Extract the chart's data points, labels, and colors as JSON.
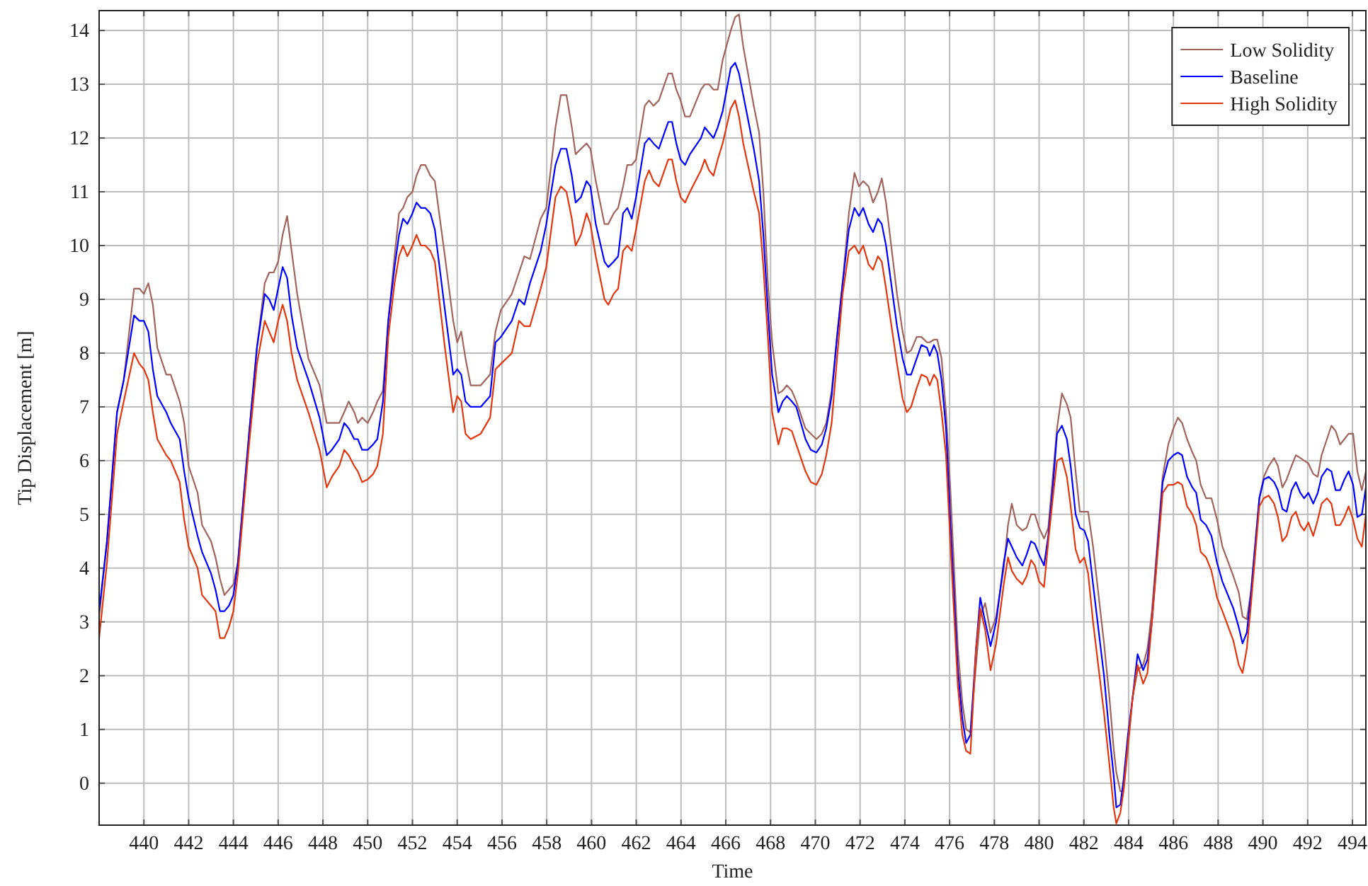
{
  "chart_data": {
    "type": "line",
    "xlabel": "Time",
    "ylabel": "Tip Displacement [m]",
    "xlim": [
      438,
      494.6
    ],
    "ylim": [
      -0.78,
      14.37
    ],
    "xticks": [
      440,
      442,
      444,
      446,
      448,
      450,
      452,
      454,
      456,
      458,
      460,
      462,
      464,
      466,
      468,
      470,
      472,
      474,
      476,
      478,
      480,
      482,
      484,
      486,
      488,
      490,
      492,
      494
    ],
    "yticks": [
      0,
      1,
      2,
      3,
      4,
      5,
      6,
      7,
      8,
      9,
      10,
      11,
      12,
      13,
      14
    ],
    "grid": true,
    "legend": "top right",
    "x": [
      438.0,
      438.35,
      438.8,
      439.1,
      439.56,
      439.8,
      440.0,
      440.2,
      440.4,
      440.6,
      441.0,
      441.2,
      441.6,
      441.8,
      442.0,
      442.4,
      442.6,
      443.0,
      443.2,
      443.4,
      443.6,
      443.8,
      444.0,
      444.2,
      444.7,
      445.05,
      445.4,
      445.6,
      445.8,
      446.0,
      446.2,
      446.4,
      446.6,
      446.85,
      447.35,
      447.85,
      448.17,
      448.4,
      448.73,
      448.95,
      449.15,
      449.4,
      449.56,
      449.75,
      450.0,
      450.24,
      450.43,
      450.68,
      450.92,
      451.2,
      451.4,
      451.58,
      451.77,
      452.0,
      452.18,
      452.38,
      452.57,
      452.8,
      453.0,
      453.45,
      453.82,
      454.0,
      454.18,
      454.37,
      454.6,
      455.05,
      455.47,
      455.71,
      455.95,
      456.44,
      456.76,
      457.0,
      457.25,
      457.73,
      457.98,
      458.2,
      458.39,
      458.63,
      458.88,
      459.12,
      459.29,
      459.53,
      459.78,
      459.95,
      460.19,
      460.58,
      460.75,
      460.99,
      461.19,
      461.41,
      461.6,
      461.8,
      461.99,
      462.38,
      462.57,
      462.77,
      463.01,
      463.26,
      463.43,
      463.6,
      463.79,
      463.98,
      464.18,
      464.4,
      464.89,
      465.06,
      465.25,
      465.45,
      465.64,
      465.86,
      466.22,
      466.42,
      466.59,
      466.78,
      467.25,
      467.49,
      467.68,
      467.88,
      468.07,
      468.35,
      468.54,
      468.73,
      468.95,
      469.15,
      469.56,
      469.8,
      470.05,
      470.29,
      470.49,
      470.73,
      470.97,
      471.22,
      471.5,
      471.75,
      471.95,
      472.14,
      472.38,
      472.58,
      472.8,
      472.97,
      473.16,
      473.65,
      473.9,
      474.09,
      474.28,
      474.53,
      474.74,
      474.99,
      475.11,
      475.3,
      475.45,
      475.64,
      475.84,
      476.03,
      476.37,
      476.57,
      476.74,
      476.93,
      477.18,
      477.37,
      477.59,
      477.83,
      478.08,
      478.42,
      478.61,
      478.78,
      479.0,
      479.25,
      479.44,
      479.64,
      479.81,
      480.0,
      480.22,
      480.41,
      480.61,
      480.8,
      481.02,
      481.24,
      481.41,
      481.63,
      481.82,
      482.02,
      482.19,
      482.41,
      482.9,
      483.14,
      483.33,
      483.45,
      483.63,
      483.77,
      483.97,
      484.18,
      484.4,
      484.65,
      484.84,
      485.04,
      485.52,
      485.77,
      486.0,
      486.2,
      486.39,
      486.61,
      486.85,
      487.02,
      487.22,
      487.46,
      487.7,
      487.95,
      488.19,
      488.68,
      488.92,
      489.09,
      489.28,
      489.46,
      489.84,
      490.04,
      490.26,
      490.5,
      490.67,
      490.87,
      491.06,
      491.28,
      491.47,
      491.67,
      491.84,
      492.03,
      492.25,
      492.45,
      492.62,
      492.86,
      493.06,
      493.25,
      493.45,
      493.64,
      493.83,
      494.03,
      494.22,
      494.42,
      494.6
    ],
    "series": [
      {
        "name": "Low Solidity",
        "color": "#a0645c",
        "values": [
          3.1,
          4.5,
          6.9,
          7.5,
          9.2,
          9.2,
          9.1,
          9.3,
          8.9,
          8.1,
          7.6,
          7.6,
          7.1,
          6.7,
          5.9,
          5.4,
          4.8,
          4.5,
          4.2,
          3.8,
          3.5,
          3.6,
          3.7,
          4.1,
          6.5,
          8.1,
          9.3,
          9.5,
          9.5,
          9.7,
          10.2,
          10.55,
          9.9,
          9.1,
          7.9,
          7.4,
          6.7,
          6.7,
          6.7,
          6.9,
          7.1,
          6.9,
          6.7,
          6.8,
          6.7,
          6.9,
          7.1,
          7.3,
          8.6,
          9.8,
          10.6,
          10.7,
          10.9,
          11.0,
          11.3,
          11.5,
          11.5,
          11.3,
          11.2,
          9.8,
          8.6,
          8.2,
          8.4,
          7.9,
          7.4,
          7.4,
          7.6,
          8.4,
          8.8,
          9.1,
          9.5,
          9.8,
          9.75,
          10.5,
          10.7,
          11.5,
          12.2,
          12.8,
          12.8,
          12.2,
          11.7,
          11.8,
          11.9,
          11.8,
          11.2,
          10.4,
          10.4,
          10.6,
          10.7,
          11.1,
          11.5,
          11.5,
          11.6,
          12.6,
          12.7,
          12.6,
          12.7,
          13.0,
          13.2,
          13.2,
          12.9,
          12.7,
          12.4,
          12.4,
          12.9,
          13.0,
          13.0,
          12.9,
          12.9,
          13.45,
          14.0,
          14.25,
          14.3,
          13.7,
          12.6,
          12.1,
          11.0,
          9.3,
          8.2,
          7.25,
          7.3,
          7.4,
          7.3,
          7.1,
          6.6,
          6.5,
          6.4,
          6.5,
          6.7,
          7.3,
          8.3,
          9.3,
          10.6,
          11.35,
          11.1,
          11.2,
          11.1,
          10.8,
          11.0,
          11.25,
          10.8,
          9.1,
          8.4,
          8.0,
          8.05,
          8.3,
          8.3,
          8.2,
          8.2,
          8.25,
          8.25,
          7.9,
          6.9,
          5.5,
          2.5,
          1.5,
          1.0,
          0.95,
          2.2,
          3.1,
          3.35,
          2.8,
          3.1,
          4.0,
          4.8,
          5.2,
          4.8,
          4.7,
          4.75,
          5.0,
          5.0,
          4.75,
          4.55,
          4.75,
          5.7,
          6.6,
          7.25,
          7.05,
          6.8,
          5.8,
          5.05,
          5.05,
          5.05,
          4.4,
          2.6,
          1.6,
          0.65,
          0.2,
          -0.15,
          -0.15,
          0.65,
          1.6,
          2.1,
          2.2,
          2.5,
          3.2,
          5.7,
          6.3,
          6.6,
          6.8,
          6.7,
          6.4,
          6.15,
          6.0,
          5.55,
          5.3,
          5.3,
          4.9,
          4.4,
          3.85,
          3.55,
          3.1,
          3.05,
          3.55,
          5.3,
          5.7,
          5.9,
          6.05,
          5.9,
          5.5,
          5.65,
          5.9,
          6.1,
          6.05,
          6.0,
          5.95,
          5.75,
          5.7,
          6.1,
          6.4,
          6.65,
          6.55,
          6.3,
          6.4,
          6.5,
          6.5,
          5.8,
          5.45,
          5.8
        ]
      },
      {
        "name": "Baseline",
        "color": "#0000ff",
        "values": [
          3.2,
          4.5,
          6.9,
          7.5,
          8.7,
          8.6,
          8.6,
          8.4,
          7.7,
          7.2,
          6.9,
          6.7,
          6.4,
          5.8,
          5.3,
          4.6,
          4.3,
          3.9,
          3.6,
          3.2,
          3.2,
          3.3,
          3.5,
          4.1,
          6.5,
          8.1,
          9.1,
          9.0,
          8.8,
          9.2,
          9.6,
          9.4,
          8.7,
          8.1,
          7.5,
          6.8,
          6.1,
          6.2,
          6.4,
          6.7,
          6.6,
          6.4,
          6.4,
          6.2,
          6.2,
          6.3,
          6.4,
          7.1,
          8.6,
          9.6,
          10.2,
          10.5,
          10.4,
          10.6,
          10.8,
          10.7,
          10.7,
          10.6,
          10.3,
          8.8,
          7.6,
          7.7,
          7.6,
          7.1,
          7.0,
          7.0,
          7.2,
          8.2,
          8.3,
          8.6,
          9.0,
          8.9,
          9.3,
          9.9,
          10.4,
          11.0,
          11.5,
          11.8,
          11.8,
          11.3,
          10.8,
          10.9,
          11.2,
          11.1,
          10.4,
          9.7,
          9.6,
          9.7,
          9.8,
          10.6,
          10.7,
          10.5,
          10.9,
          11.9,
          12.0,
          11.9,
          11.8,
          12.1,
          12.3,
          12.3,
          11.9,
          11.6,
          11.5,
          11.7,
          12.0,
          12.2,
          12.1,
          12.0,
          12.2,
          12.5,
          13.3,
          13.4,
          13.2,
          12.8,
          11.8,
          11.2,
          10.2,
          8.8,
          7.6,
          6.9,
          7.1,
          7.2,
          7.1,
          7.0,
          6.4,
          6.2,
          6.15,
          6.3,
          6.6,
          7.2,
          8.3,
          9.3,
          10.3,
          10.7,
          10.55,
          10.7,
          10.4,
          10.25,
          10.5,
          10.4,
          10.0,
          8.5,
          7.9,
          7.6,
          7.6,
          7.9,
          8.15,
          8.1,
          7.95,
          8.15,
          8.0,
          7.5,
          6.6,
          4.9,
          2.1,
          1.2,
          0.75,
          0.9,
          2.5,
          3.45,
          3.0,
          2.55,
          3.0,
          4.1,
          4.55,
          4.4,
          4.2,
          4.05,
          4.25,
          4.5,
          4.45,
          4.25,
          4.05,
          4.6,
          5.5,
          6.5,
          6.65,
          6.4,
          5.9,
          5.0,
          4.75,
          4.7,
          4.5,
          3.7,
          2.0,
          0.9,
          0.15,
          -0.45,
          -0.4,
          0.05,
          0.9,
          1.6,
          2.4,
          2.1,
          2.3,
          3.0,
          5.6,
          6.0,
          6.1,
          6.15,
          6.1,
          5.7,
          5.5,
          5.4,
          4.9,
          4.8,
          4.6,
          4.1,
          3.75,
          3.25,
          2.9,
          2.6,
          2.8,
          3.5,
          5.3,
          5.65,
          5.7,
          5.6,
          5.45,
          5.1,
          5.05,
          5.45,
          5.6,
          5.4,
          5.3,
          5.4,
          5.2,
          5.4,
          5.7,
          5.85,
          5.8,
          5.45,
          5.45,
          5.65,
          5.8,
          5.55,
          4.95,
          5.0,
          5.5
        ]
      },
      {
        "name": "High Solidity",
        "color": "#e2360e",
        "values": [
          2.7,
          4.1,
          6.5,
          7.1,
          8.0,
          7.8,
          7.7,
          7.5,
          6.9,
          6.4,
          6.1,
          6.0,
          5.6,
          4.9,
          4.4,
          4.0,
          3.5,
          3.3,
          3.2,
          2.7,
          2.7,
          2.9,
          3.2,
          3.9,
          6.3,
          7.8,
          8.6,
          8.4,
          8.2,
          8.6,
          8.9,
          8.6,
          8.0,
          7.5,
          6.9,
          6.2,
          5.5,
          5.7,
          5.9,
          6.2,
          6.1,
          5.9,
          5.8,
          5.6,
          5.65,
          5.75,
          5.9,
          6.5,
          8.3,
          9.3,
          9.8,
          10.0,
          9.8,
          10.0,
          10.2,
          10.0,
          10.0,
          9.9,
          9.7,
          8.1,
          6.9,
          7.2,
          7.1,
          6.5,
          6.4,
          6.5,
          6.8,
          7.7,
          7.8,
          8.0,
          8.6,
          8.5,
          8.5,
          9.2,
          9.6,
          10.3,
          10.9,
          11.1,
          11.0,
          10.5,
          10.0,
          10.2,
          10.6,
          10.4,
          9.8,
          9.0,
          8.9,
          9.1,
          9.2,
          9.9,
          10.0,
          9.9,
          10.3,
          11.2,
          11.4,
          11.2,
          11.1,
          11.4,
          11.6,
          11.6,
          11.2,
          10.9,
          10.8,
          11.0,
          11.4,
          11.6,
          11.4,
          11.3,
          11.6,
          11.9,
          12.55,
          12.7,
          12.4,
          11.9,
          11.0,
          10.6,
          9.6,
          8.3,
          6.9,
          6.3,
          6.6,
          6.6,
          6.55,
          6.3,
          5.8,
          5.6,
          5.55,
          5.75,
          6.1,
          6.7,
          7.9,
          9.1,
          9.9,
          10.0,
          9.85,
          10.0,
          9.65,
          9.55,
          9.8,
          9.7,
          9.2,
          7.8,
          7.15,
          6.9,
          7.0,
          7.35,
          7.6,
          7.55,
          7.4,
          7.6,
          7.5,
          6.9,
          6.1,
          4.5,
          1.8,
          0.9,
          0.6,
          0.55,
          2.5,
          3.25,
          2.85,
          2.1,
          2.6,
          3.7,
          4.2,
          3.95,
          3.8,
          3.7,
          3.85,
          4.15,
          4.05,
          3.75,
          3.65,
          4.5,
          5.3,
          6.0,
          6.05,
          5.7,
          5.15,
          4.35,
          4.1,
          4.2,
          3.9,
          3.0,
          1.3,
          0.35,
          -0.45,
          -0.75,
          -0.55,
          -0.15,
          0.75,
          1.6,
          2.2,
          1.85,
          2.05,
          3.0,
          5.4,
          5.55,
          5.55,
          5.6,
          5.55,
          5.15,
          5.0,
          4.8,
          4.3,
          4.2,
          3.95,
          3.45,
          3.2,
          2.65,
          2.2,
          2.05,
          2.5,
          3.3,
          5.15,
          5.3,
          5.35,
          5.2,
          4.95,
          4.5,
          4.6,
          4.95,
          5.05,
          4.8,
          4.7,
          4.85,
          4.6,
          4.9,
          5.2,
          5.3,
          5.2,
          4.8,
          4.8,
          4.95,
          5.15,
          4.9,
          4.55,
          4.4,
          5.0
        ]
      }
    ]
  }
}
